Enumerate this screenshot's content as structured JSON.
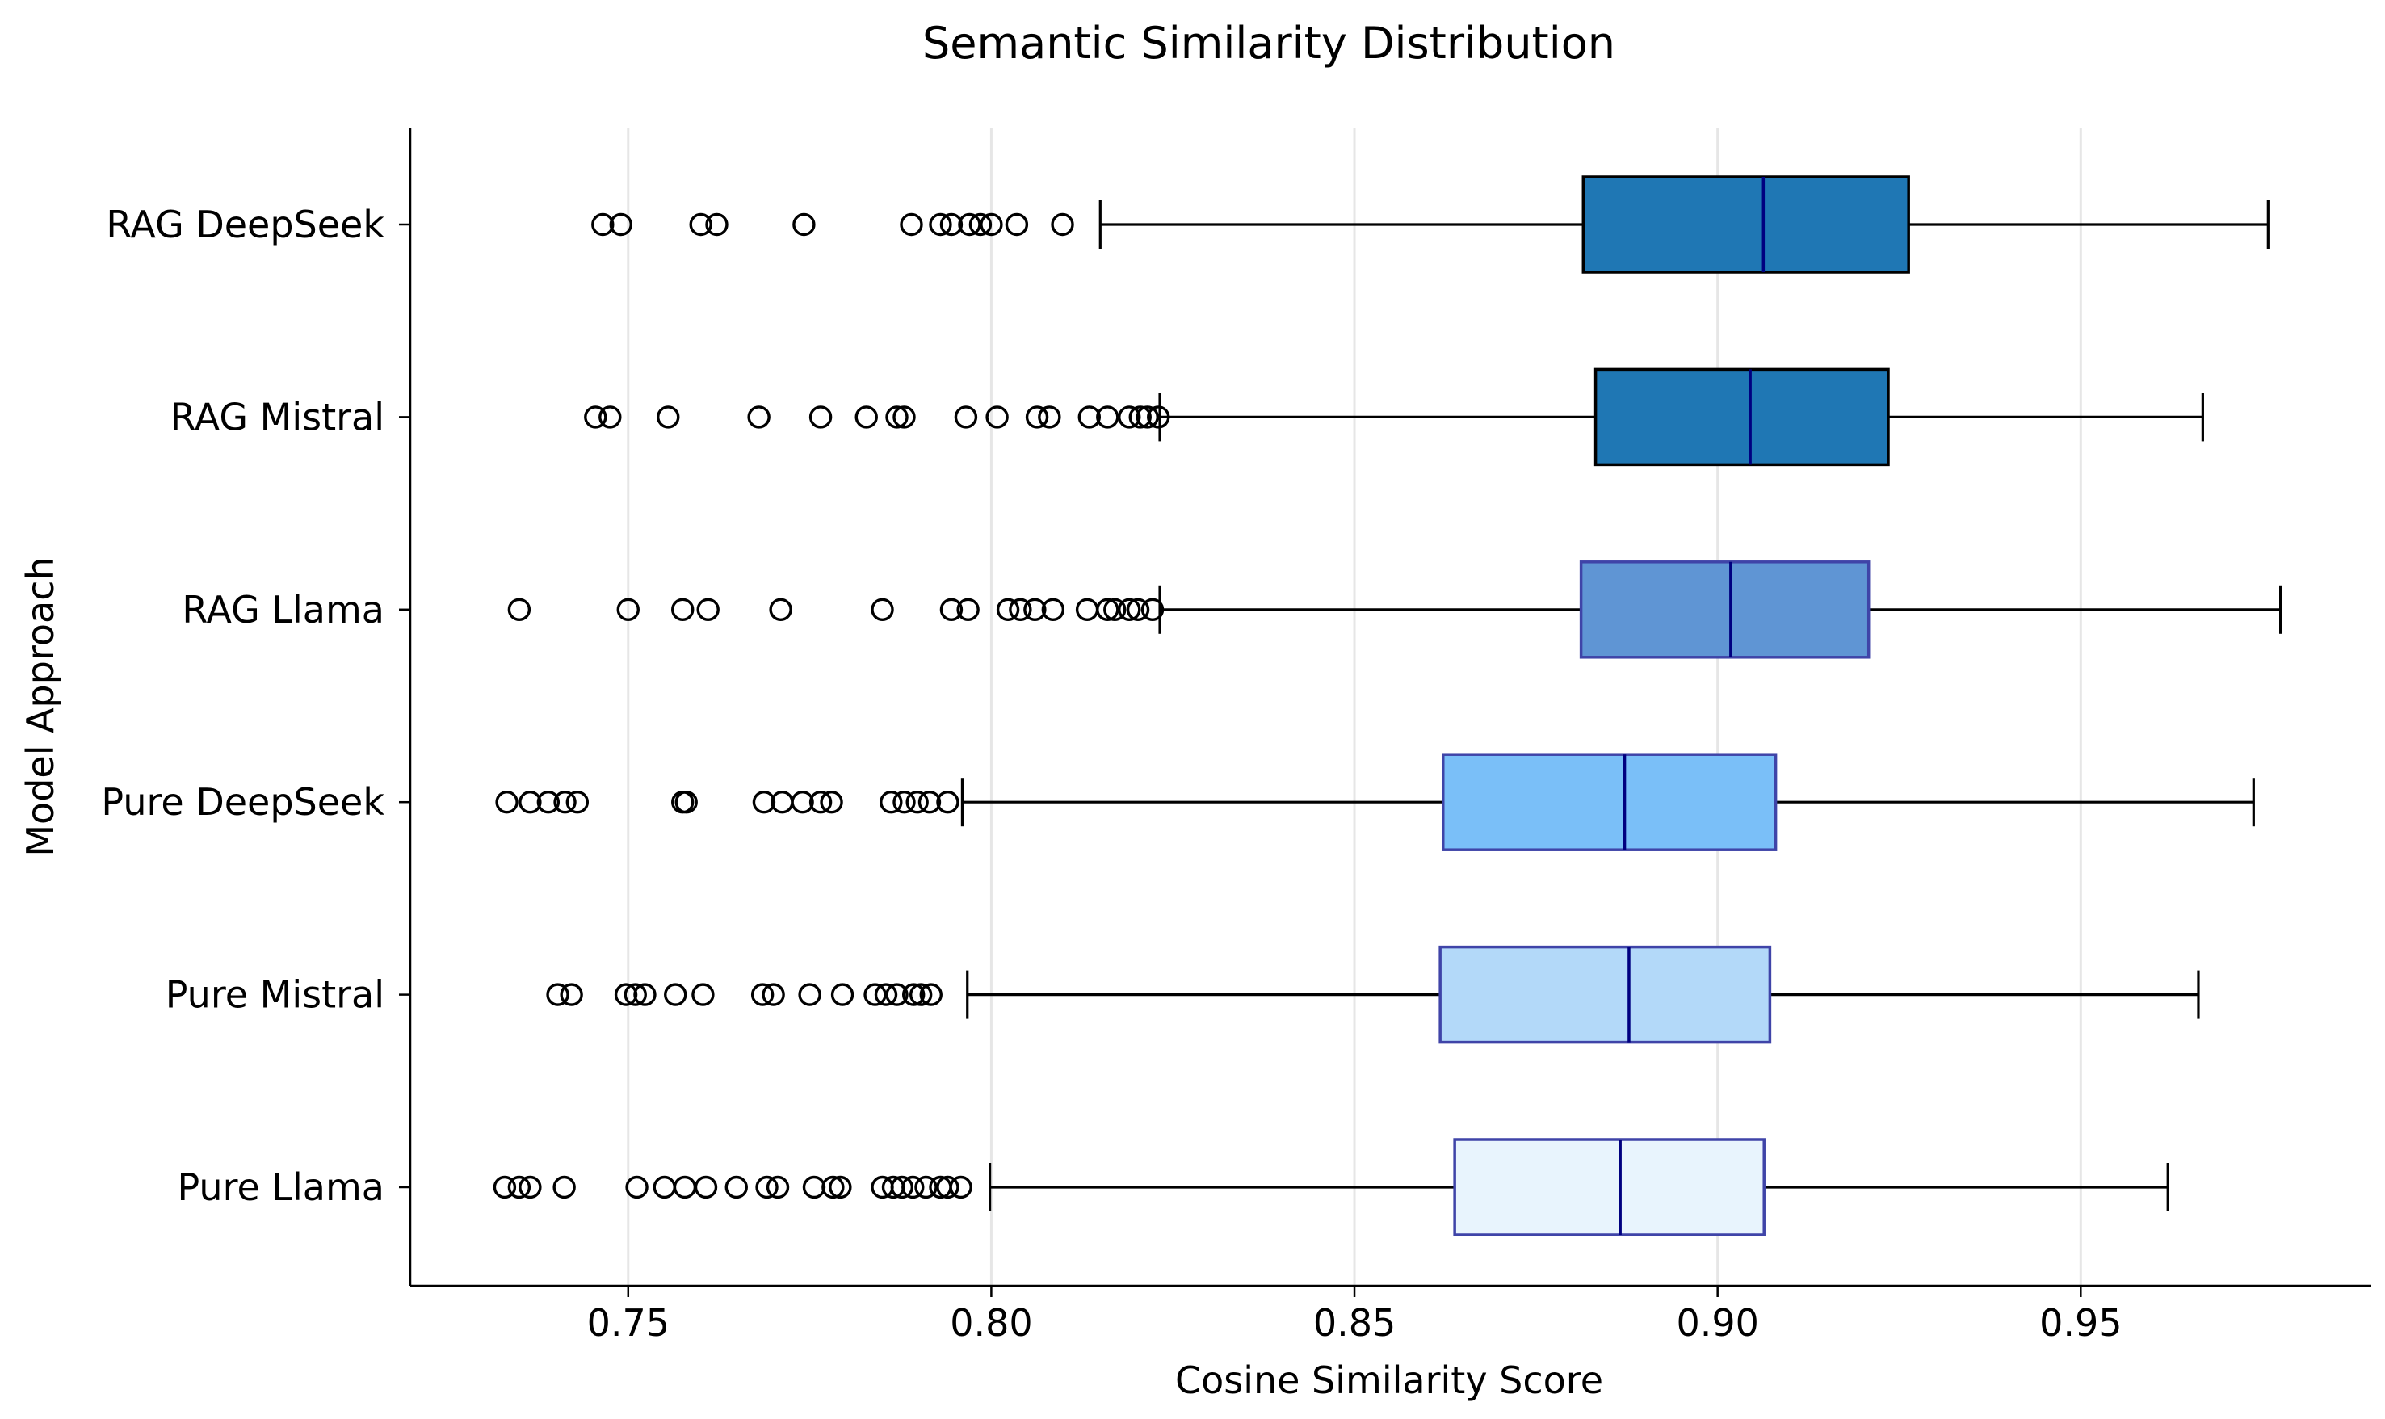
{
  "chart_data": {
    "type": "boxplot",
    "orientation": "horizontal",
    "title": "Semantic Similarity Distribution",
    "xlabel": "Cosine Similarity Score",
    "ylabel": "Model Approach",
    "xlim": [
      0.72,
      0.99
    ],
    "xticks": [
      0.75,
      0.8,
      0.85,
      0.9,
      0.95
    ],
    "xtick_labels": [
      "0.75",
      "0.80",
      "0.85",
      "0.90",
      "0.95"
    ],
    "grid": "vertical",
    "categories": [
      "Pure Llama",
      "Pure Mistral",
      "Pure DeepSeek",
      "RAG Llama",
      "RAG Mistral",
      "RAG DeepSeek"
    ],
    "series": [
      {
        "label": "Pure Llama",
        "whisker_low": 0.7998,
        "q1": 0.8638,
        "median": 0.8866,
        "q3": 0.9064,
        "whisker_high": 0.962,
        "color": "#e8f4fd",
        "edge": "#3f44a8",
        "fliers": [
          0.733,
          0.735,
          0.7365,
          0.7412,
          0.7512,
          0.755,
          0.7578,
          0.7607,
          0.7649,
          0.7691,
          0.7706,
          0.7756,
          0.7782,
          0.7792,
          0.785,
          0.7865,
          0.7877,
          0.7892,
          0.791,
          0.793,
          0.794,
          0.7958
        ]
      },
      {
        "label": "Pure Mistral",
        "whisker_low": 0.7967,
        "q1": 0.8618,
        "median": 0.8878,
        "q3": 0.9072,
        "whisker_high": 0.9662,
        "color": "#b3d9f9",
        "edge": "#3f44a8",
        "fliers": [
          0.7403,
          0.7422,
          0.7497,
          0.751,
          0.7523,
          0.7565,
          0.7603,
          0.7685,
          0.77,
          0.775,
          0.7795,
          0.784,
          0.7855,
          0.787,
          0.7893,
          0.7903,
          0.7917
        ]
      },
      {
        "label": "Pure DeepSeek",
        "whisker_low": 0.796,
        "q1": 0.8622,
        "median": 0.8872,
        "q3": 0.908,
        "whisker_high": 0.9738,
        "color": "#7abff8",
        "edge": "#3f44a8",
        "fliers": [
          0.7333,
          0.7365,
          0.739,
          0.7413,
          0.743,
          0.7575,
          0.758,
          0.7687,
          0.7712,
          0.774,
          0.7765,
          0.778,
          0.7862,
          0.788,
          0.7898,
          0.7915,
          0.794
        ]
      },
      {
        "label": "RAG Llama",
        "whisker_low": 0.8232,
        "q1": 0.8812,
        "median": 0.9018,
        "q3": 0.9208,
        "whisker_high": 0.9775,
        "color": "#5f95d4",
        "edge": "#3f44a8",
        "fliers": [
          0.735,
          0.75,
          0.7575,
          0.761,
          0.771,
          0.785,
          0.7945,
          0.7968,
          0.8023,
          0.804,
          0.806,
          0.8085,
          0.8132,
          0.816,
          0.817,
          0.819,
          0.8202,
          0.8222
        ]
      },
      {
        "label": "RAG Mistral",
        "whisker_low": 0.8232,
        "q1": 0.8832,
        "median": 0.9045,
        "q3": 0.9235,
        "whisker_high": 0.9668,
        "color": "#1f77b4",
        "edge": "#000000",
        "fliers": [
          0.7455,
          0.7475,
          0.7555,
          0.768,
          0.7765,
          0.7828,
          0.787,
          0.788,
          0.7965,
          0.8008,
          0.8063,
          0.808,
          0.8135,
          0.816,
          0.819,
          0.8205,
          0.8215,
          0.823
        ]
      },
      {
        "label": "RAG DeepSeek",
        "whisker_low": 0.815,
        "q1": 0.8815,
        "median": 0.9063,
        "q3": 0.9263,
        "whisker_high": 0.9758,
        "color": "#1f77b4",
        "edge": "#000000",
        "fliers": [
          0.7465,
          0.749,
          0.76,
          0.7622,
          0.7742,
          0.789,
          0.793,
          0.7945,
          0.797,
          0.7985,
          0.8,
          0.8035,
          0.8098
        ]
      }
    ]
  }
}
